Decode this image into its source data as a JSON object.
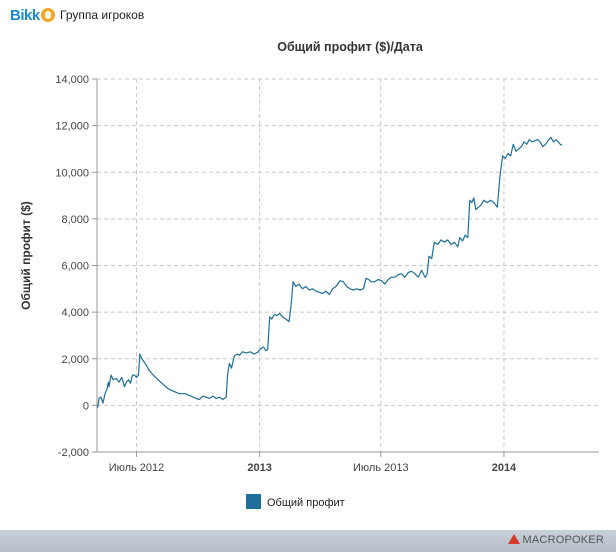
{
  "header": {
    "logo_text": "Bikk",
    "title": "Группа игроков"
  },
  "footer": {
    "brand": "MACROPOKER"
  },
  "chart_data": {
    "type": "line",
    "title": "Общий профит ($)/Дата",
    "ylabel": "Общий профит ($)",
    "xlabel": "",
    "ylim": [
      -2000,
      14000
    ],
    "yticks": [
      -2000,
      0,
      2000,
      4000,
      6000,
      8000,
      10000,
      12000,
      14000
    ],
    "ytick_labels": [
      "-2,000",
      "0",
      "2,000",
      "4,000",
      "6,000",
      "8,000",
      "10,000",
      "12,000",
      "14,000"
    ],
    "xlim": [
      "2012-05-03",
      "2014-05-23"
    ],
    "xticks": [
      {
        "date": "2012-07-01",
        "label": "Июль 2012",
        "bold": false
      },
      {
        "date": "2013-01-01",
        "label": "2013",
        "bold": true
      },
      {
        "date": "2013-07-01",
        "label": "Июль 2013",
        "bold": false
      },
      {
        "date": "2014-01-01",
        "label": "2014",
        "bold": true
      }
    ],
    "grid": true,
    "legend_position": "bottom-center",
    "series": [
      {
        "name": "Общий профит",
        "color": "#1f6e99",
        "points": [
          [
            "2012-05-04",
            -100
          ],
          [
            "2012-05-06",
            300
          ],
          [
            "2012-05-09",
            350
          ],
          [
            "2012-05-12",
            100
          ],
          [
            "2012-05-15",
            500
          ],
          [
            "2012-05-18",
            700
          ],
          [
            "2012-05-20",
            1000
          ],
          [
            "2012-05-21",
            800
          ],
          [
            "2012-05-24",
            1300
          ],
          [
            "2012-05-27",
            1100
          ],
          [
            "2012-06-01",
            1150
          ],
          [
            "2012-06-05",
            1000
          ],
          [
            "2012-06-09",
            1200
          ],
          [
            "2012-06-13",
            800
          ],
          [
            "2012-06-16",
            1000
          ],
          [
            "2012-06-19",
            1100
          ],
          [
            "2012-06-22",
            950
          ],
          [
            "2012-06-25",
            1300
          ],
          [
            "2012-06-28",
            1300
          ],
          [
            "2012-07-01",
            1200
          ],
          [
            "2012-07-04",
            1300
          ],
          [
            "2012-07-06",
            2200
          ],
          [
            "2012-07-10",
            1950
          ],
          [
            "2012-07-14",
            1800
          ],
          [
            "2012-07-20",
            1500
          ],
          [
            "2012-07-26",
            1300
          ],
          [
            "2012-08-02",
            1100
          ],
          [
            "2012-08-10",
            900
          ],
          [
            "2012-08-18",
            700
          ],
          [
            "2012-08-26",
            600
          ],
          [
            "2012-09-03",
            500
          ],
          [
            "2012-09-12",
            500
          ],
          [
            "2012-09-20",
            400
          ],
          [
            "2012-09-28",
            300
          ],
          [
            "2012-10-03",
            250
          ],
          [
            "2012-10-08",
            400
          ],
          [
            "2012-10-13",
            350
          ],
          [
            "2012-10-18",
            300
          ],
          [
            "2012-10-23",
            400
          ],
          [
            "2012-10-28",
            300
          ],
          [
            "2012-11-02",
            350
          ],
          [
            "2012-11-07",
            250
          ],
          [
            "2012-11-12",
            350
          ],
          [
            "2012-11-14",
            1300
          ],
          [
            "2012-11-17",
            1800
          ],
          [
            "2012-11-20",
            1600
          ],
          [
            "2012-11-24",
            2100
          ],
          [
            "2012-11-28",
            2200
          ],
          [
            "2012-12-02",
            2150
          ],
          [
            "2012-12-06",
            2300
          ],
          [
            "2012-12-12",
            2250
          ],
          [
            "2012-12-18",
            2300
          ],
          [
            "2012-12-24",
            2200
          ],
          [
            "2012-12-30",
            2300
          ],
          [
            "2013-01-03",
            2450
          ],
          [
            "2013-01-07",
            2500
          ],
          [
            "2013-01-10",
            2350
          ],
          [
            "2013-01-13",
            2400
          ],
          [
            "2013-01-16",
            3800
          ],
          [
            "2013-01-19",
            3700
          ],
          [
            "2013-01-23",
            3900
          ],
          [
            "2013-01-27",
            3850
          ],
          [
            "2013-01-31",
            3950
          ],
          [
            "2013-02-04",
            3800
          ],
          [
            "2013-02-09",
            3700
          ],
          [
            "2013-02-14",
            3600
          ],
          [
            "2013-02-17",
            4300
          ],
          [
            "2013-02-20",
            5300
          ],
          [
            "2013-02-24",
            5100
          ],
          [
            "2013-03-01",
            5200
          ],
          [
            "2013-03-06",
            5000
          ],
          [
            "2013-03-11",
            5100
          ],
          [
            "2013-03-16",
            4950
          ],
          [
            "2013-03-21",
            5000
          ],
          [
            "2013-03-26",
            4900
          ],
          [
            "2013-03-31",
            4850
          ],
          [
            "2013-04-05",
            4800
          ],
          [
            "2013-04-10",
            4900
          ],
          [
            "2013-04-15",
            4750
          ],
          [
            "2013-04-20",
            5000
          ],
          [
            "2013-04-25",
            5100
          ],
          [
            "2013-05-01",
            5350
          ],
          [
            "2013-05-06",
            5300
          ],
          [
            "2013-05-11",
            5100
          ],
          [
            "2013-05-16",
            5000
          ],
          [
            "2013-05-21",
            4950
          ],
          [
            "2013-05-26",
            5000
          ],
          [
            "2013-05-31",
            4950
          ],
          [
            "2013-06-05",
            5000
          ],
          [
            "2013-06-09",
            5450
          ],
          [
            "2013-06-13",
            5400
          ],
          [
            "2013-06-17",
            5300
          ],
          [
            "2013-06-22",
            5300
          ],
          [
            "2013-06-27",
            5400
          ],
          [
            "2013-07-02",
            5350
          ],
          [
            "2013-07-07",
            5200
          ],
          [
            "2013-07-12",
            5400
          ],
          [
            "2013-07-17",
            5500
          ],
          [
            "2013-07-22",
            5500
          ],
          [
            "2013-07-27",
            5600
          ],
          [
            "2013-08-01",
            5650
          ],
          [
            "2013-08-06",
            5500
          ],
          [
            "2013-08-11",
            5700
          ],
          [
            "2013-08-16",
            5750
          ],
          [
            "2013-08-21",
            5650
          ],
          [
            "2013-08-26",
            5500
          ],
          [
            "2013-08-31",
            5800
          ],
          [
            "2013-09-05",
            5500
          ],
          [
            "2013-09-08",
            5600
          ],
          [
            "2013-09-11",
            6400
          ],
          [
            "2013-09-15",
            6300
          ],
          [
            "2013-09-19",
            7000
          ],
          [
            "2013-09-24",
            6900
          ],
          [
            "2013-09-29",
            7100
          ],
          [
            "2013-10-04",
            7000
          ],
          [
            "2013-10-09",
            7100
          ],
          [
            "2013-10-14",
            6900
          ],
          [
            "2013-10-19",
            7000
          ],
          [
            "2013-10-24",
            6800
          ],
          [
            "2013-10-27",
            7200
          ],
          [
            "2013-10-31",
            7050
          ],
          [
            "2013-11-04",
            7300
          ],
          [
            "2013-11-08",
            7200
          ],
          [
            "2013-11-11",
            8800
          ],
          [
            "2013-11-14",
            8700
          ],
          [
            "2013-11-17",
            8900
          ],
          [
            "2013-11-20",
            8400
          ],
          [
            "2013-11-24",
            8500
          ],
          [
            "2013-11-28",
            8600
          ],
          [
            "2013-12-02",
            8800
          ],
          [
            "2013-12-07",
            8700
          ],
          [
            "2013-12-12",
            8800
          ],
          [
            "2013-12-17",
            8700
          ],
          [
            "2013-12-22",
            8500
          ],
          [
            "2013-12-26",
            9800
          ],
          [
            "2013-12-30",
            10700
          ],
          [
            "2014-01-03",
            10600
          ],
          [
            "2014-01-07",
            10800
          ],
          [
            "2014-01-11",
            10700
          ],
          [
            "2014-01-15",
            11200
          ],
          [
            "2014-01-19",
            10900
          ],
          [
            "2014-01-23",
            11000
          ],
          [
            "2014-01-27",
            11100
          ],
          [
            "2014-01-31",
            11300
          ],
          [
            "2014-02-04",
            11200
          ],
          [
            "2014-02-08",
            11400
          ],
          [
            "2014-02-12",
            11300
          ],
          [
            "2014-02-16",
            11350
          ],
          [
            "2014-02-20",
            11400
          ],
          [
            "2014-02-24",
            11300
          ],
          [
            "2014-02-28",
            11100
          ],
          [
            "2014-03-04",
            11200
          ],
          [
            "2014-03-08",
            11350
          ],
          [
            "2014-03-12",
            11500
          ],
          [
            "2014-03-16",
            11300
          ],
          [
            "2014-03-20",
            11400
          ],
          [
            "2014-03-23",
            11300
          ],
          [
            "2014-03-26",
            11200
          ],
          [
            "2014-03-29",
            11150
          ]
        ]
      }
    ]
  }
}
